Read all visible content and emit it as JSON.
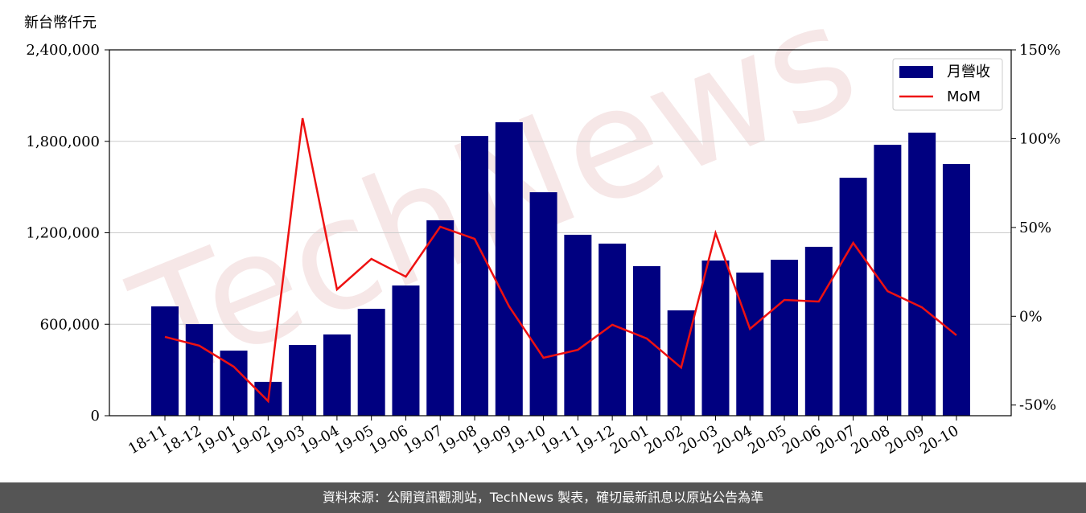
{
  "chart_data": {
    "type": "bar_line",
    "y_label": "新台幣仟元",
    "watermark": "TechNews",
    "footer": "資料來源：公開資訊觀測站，TechNews 製表，確切最新訊息以原站公告為準",
    "categories": [
      "18-11",
      "18-12",
      "19-01",
      "19-02",
      "19-03",
      "19-04",
      "19-05",
      "19-06",
      "19-07",
      "19-08",
      "19-09",
      "19-10",
      "19-11",
      "19-12",
      "20-01",
      "20-02",
      "20-03",
      "20-04",
      "20-05",
      "20-06",
      "20-07",
      "20-08",
      "20-09",
      "20-10"
    ],
    "series": [
      {
        "name": "月營收",
        "type": "bar",
        "color": "#000080",
        "values": [
          717000,
          601000,
          427000,
          222000,
          464000,
          533000,
          701000,
          854000,
          1282000,
          1835000,
          1925000,
          1466000,
          1187000,
          1129000,
          981000,
          691000,
          1018000,
          939000,
          1023000,
          1108000,
          1561000,
          1777000,
          1857000,
          1651000
        ]
      },
      {
        "name": "MoM",
        "type": "line",
        "axis": "y2",
        "color": "#ee1111",
        "values": [
          -11.6,
          -16.6,
          -28.4,
          -47.8,
          111.5,
          15.1,
          32.3,
          22.3,
          50.4,
          43.6,
          5.6,
          -23.4,
          -18.9,
          -4.8,
          -12.5,
          -28.9,
          46.8,
          -7.1,
          9.2,
          8.3,
          41.3,
          14.1,
          5.0,
          -10.7
        ]
      }
    ],
    "ylim": [
      0,
      2400000
    ],
    "yticks": [
      0,
      {
        "value": 600000,
        "label": "600,000"
      },
      {
        "value": 1200000,
        "label": "1,200,000"
      },
      {
        "value": 1800000,
        "label": "1,800,000"
      },
      {
        "value": 2400000,
        "label": "2,400,000"
      }
    ],
    "y2lim": [
      -56,
      150
    ],
    "y2ticks": [
      {
        "value": -50,
        "label": "-50%"
      },
      {
        "value": 0,
        "label": "0%"
      },
      {
        "value": 50,
        "label": "50%"
      },
      {
        "value": 100,
        "label": "100%"
      },
      {
        "value": 150,
        "label": "150%"
      }
    ],
    "grid": true,
    "legend": "upper right"
  }
}
